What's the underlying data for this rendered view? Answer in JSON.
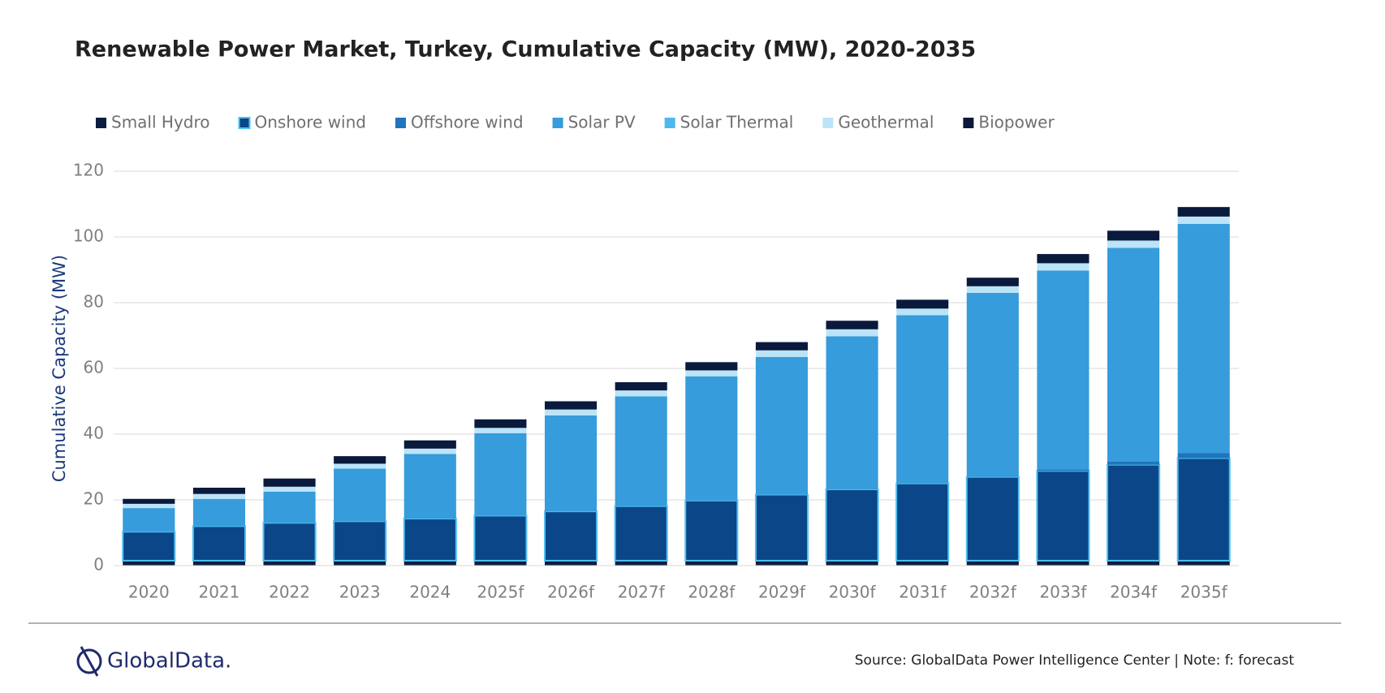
{
  "chart_data": {
    "type": "stacked_bar",
    "title": "Renewable Power Market, Turkey, Cumulative Capacity (MW), 2020-2035",
    "y_label": "Cumulative Capacity (MW)",
    "categories": [
      "2020",
      "2021",
      "2022",
      "2023",
      "2024",
      "2025f",
      "2026f",
      "2027f",
      "2028f",
      "2029f",
      "2030f",
      "2031f",
      "2032f",
      "2033f",
      "2034f",
      "2035f"
    ],
    "series": [
      {
        "name": "Small Hydro",
        "color": "#0b1d42",
        "values": [
          1.5,
          1.5,
          1.5,
          1.5,
          1.5,
          1.5,
          1.5,
          1.5,
          1.5,
          1.5,
          1.5,
          1.5,
          1.5,
          1.5,
          1.5,
          1.5
        ]
      },
      {
        "name": "Onshore wind",
        "color": "#0b4688",
        "edgecolor": "#4fc1f2",
        "values": [
          8.8,
          10.5,
          11.5,
          12.0,
          12.8,
          13.7,
          15.0,
          16.6,
          18.3,
          20.1,
          21.7,
          23.5,
          25.5,
          27.3,
          29.2,
          31.2
        ]
      },
      {
        "name": "Offshore wind",
        "color": "#1f74bd",
        "values": [
          0,
          0,
          0,
          0,
          0,
          0,
          0,
          0,
          0,
          0,
          0,
          0,
          0,
          0.5,
          1.0,
          1.5
        ]
      },
      {
        "name": "Solar PV",
        "color": "#369cdb",
        "values": [
          7.2,
          8.3,
          9.5,
          16.0,
          19.7,
          25.1,
          29.2,
          33.4,
          37.8,
          41.9,
          46.6,
          51.2,
          56.0,
          60.5,
          65.0,
          69.8
        ]
      },
      {
        "name": "Solar Thermal",
        "color": "#4db8ee",
        "values": [
          0,
          0,
          0,
          0,
          0,
          0,
          0,
          0,
          0,
          0,
          0,
          0,
          0,
          0,
          0,
          0
        ]
      },
      {
        "name": "Geothermal",
        "color": "#bce4f8",
        "values": [
          1.3,
          1.5,
          1.5,
          1.5,
          1.6,
          1.6,
          1.8,
          1.8,
          1.8,
          2.0,
          2.1,
          2.0,
          2.0,
          2.2,
          2.2,
          2.2
        ]
      },
      {
        "name": "Biopower",
        "color": "#0a1a3c",
        "values": [
          1.5,
          1.9,
          2.5,
          2.3,
          2.5,
          2.6,
          2.5,
          2.5,
          2.5,
          2.5,
          2.6,
          2.7,
          2.6,
          2.8,
          3.0,
          2.9
        ]
      }
    ],
    "ylim": [
      0,
      120
    ],
    "yticks": [
      0,
      20,
      40,
      60,
      80,
      100,
      120
    ],
    "grid": true,
    "legend": "top"
  },
  "footer": {
    "logo": "GlobalData.",
    "source": "Source: GlobalData Power Intelligence Center | Note: f: forecast"
  }
}
